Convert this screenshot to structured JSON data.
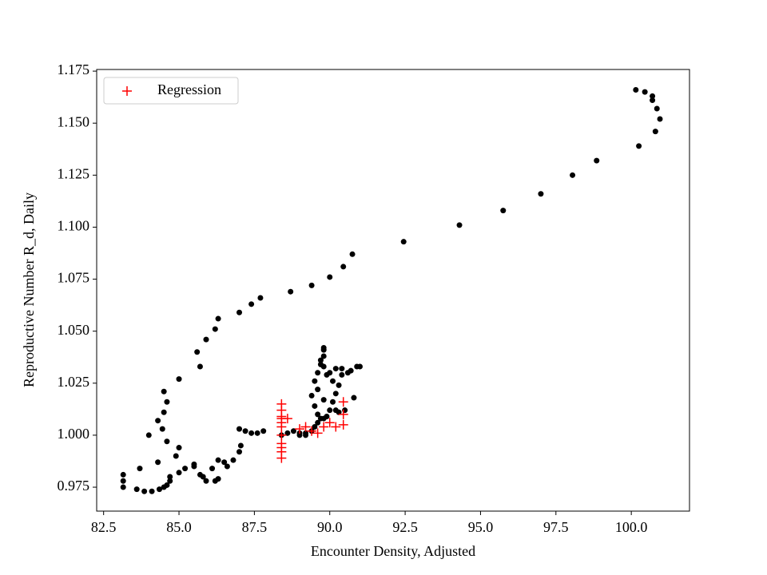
{
  "chart_data": {
    "type": "scatter",
    "x_label": "Encounter Density, Adjusted",
    "y_label": "Reproductive Number R_d, Daily",
    "xlim": [
      82.27,
      101.93
    ],
    "ylim": [
      0.9635,
      1.1758
    ],
    "xticks": [
      82.5,
      {
        "value": 85,
        "label": "85.0"
      },
      87.5,
      {
        "value": 90,
        "label": "90.0"
      },
      92.5,
      {
        "value": 95,
        "label": "95.0"
      },
      97.5,
      {
        "value": 100,
        "label": "100.0"
      }
    ],
    "yticks": [
      0.975,
      {
        "value": 1,
        "label": "1.000"
      },
      1.025,
      {
        "value": 1.05,
        "label": "1.050"
      },
      1.075,
      {
        "value": 1.1,
        "label": "1.100"
      },
      1.125,
      {
        "value": 1.15,
        "label": "1.150"
      },
      1.175
    ],
    "legend": "upper left",
    "series": [
      {
        "color": "#000000",
        "marker": "dot",
        "x": [
          83.15,
          83.15,
          83.15,
          83.6,
          83.85,
          84.1,
          84.35,
          84.5,
          84.6,
          84.7,
          84.7,
          84.9,
          85.0,
          84.6,
          84.45,
          84.5,
          84.6,
          84.5,
          84.3,
          84.0,
          84.3,
          83.7,
          85.0,
          85.2,
          85.5,
          85.5,
          85.7,
          85.8,
          85.9,
          86.1,
          86.2,
          86.3,
          86.3,
          86.5,
          86.6,
          86.8,
          87.0,
          87.05,
          87.0,
          87.2,
          87.4,
          87.6,
          87.8,
          85.0,
          85.7,
          85.6,
          85.9,
          86.2,
          86.3,
          87.0,
          87.4,
          87.7,
          88.7,
          89.4,
          90.0,
          90.45,
          90.75,
          92.45,
          94.3,
          95.75,
          97.0,
          98.05,
          98.85,
          100.25,
          100.8,
          100.95,
          100.85,
          100.7,
          100.7,
          100.45,
          100.15,
          88.4,
          88.6,
          88.8,
          89.0,
          89.2,
          89.4,
          89.5,
          89.6,
          89.7,
          89.8,
          89.9,
          90.0,
          90.1,
          90.2,
          90.3,
          90.1,
          89.9,
          89.8,
          89.7,
          89.8,
          89.8,
          89.8,
          89.7,
          89.6,
          89.5,
          89.6,
          89.4,
          89.5,
          90.0,
          90.2,
          90.4,
          90.4,
          90.6,
          90.7,
          90.9,
          91.0,
          90.8,
          90.5,
          90.3,
          90.2,
          89.8,
          89.6,
          89.0,
          89.2
        ],
        "values": [
          0.975,
          0.978,
          0.981,
          0.974,
          0.973,
          0.973,
          0.974,
          0.975,
          0.976,
          0.978,
          0.98,
          0.99,
          0.994,
          0.997,
          1.003,
          1.011,
          1.016,
          1.021,
          1.007,
          1.0,
          0.987,
          0.984,
          0.982,
          0.984,
          0.986,
          0.985,
          0.981,
          0.98,
          0.978,
          0.984,
          0.978,
          0.979,
          0.988,
          0.987,
          0.985,
          0.988,
          0.992,
          0.995,
          1.003,
          1.002,
          1.001,
          1.001,
          1.002,
          1.027,
          1.033,
          1.04,
          1.046,
          1.051,
          1.056,
          1.059,
          1.063,
          1.066,
          1.069,
          1.072,
          1.076,
          1.081,
          1.087,
          1.093,
          1.101,
          1.108,
          1.116,
          1.125,
          1.132,
          1.139,
          1.146,
          1.152,
          1.157,
          1.161,
          1.163,
          1.165,
          1.166,
          1.0,
          1.001,
          1.002,
          1.001,
          1.001,
          1.002,
          1.004,
          1.006,
          1.008,
          1.008,
          1.009,
          1.012,
          1.016,
          1.02,
          1.024,
          1.026,
          1.029,
          1.033,
          1.036,
          1.038,
          1.041,
          1.042,
          1.034,
          1.03,
          1.026,
          1.022,
          1.019,
          1.014,
          1.03,
          1.032,
          1.032,
          1.029,
          1.03,
          1.031,
          1.033,
          1.033,
          1.018,
          1.012,
          1.011,
          1.012,
          1.017,
          1.01,
          1.0,
          1.0
        ]
      },
      {
        "name": "Regression",
        "color": "#ff0000",
        "marker": "plus",
        "x": [
          88.4,
          88.4,
          88.4,
          88.4,
          88.4,
          88.4,
          88.4,
          88.4,
          88.4,
          88.4,
          88.4,
          88.6,
          89.0,
          89.2,
          89.4,
          89.6,
          89.8,
          90.0,
          90.2,
          90.45,
          90.45,
          90.45
        ],
        "values": [
          0.989,
          0.992,
          0.994,
          0.996,
          1.0,
          1.004,
          1.006,
          1.008,
          1.009,
          1.012,
          1.015,
          1.008,
          1.003,
          1.004,
          1.002,
          1.001,
          1.004,
          1.006,
          1.004,
          1.005,
          1.01,
          1.016
        ]
      }
    ]
  }
}
